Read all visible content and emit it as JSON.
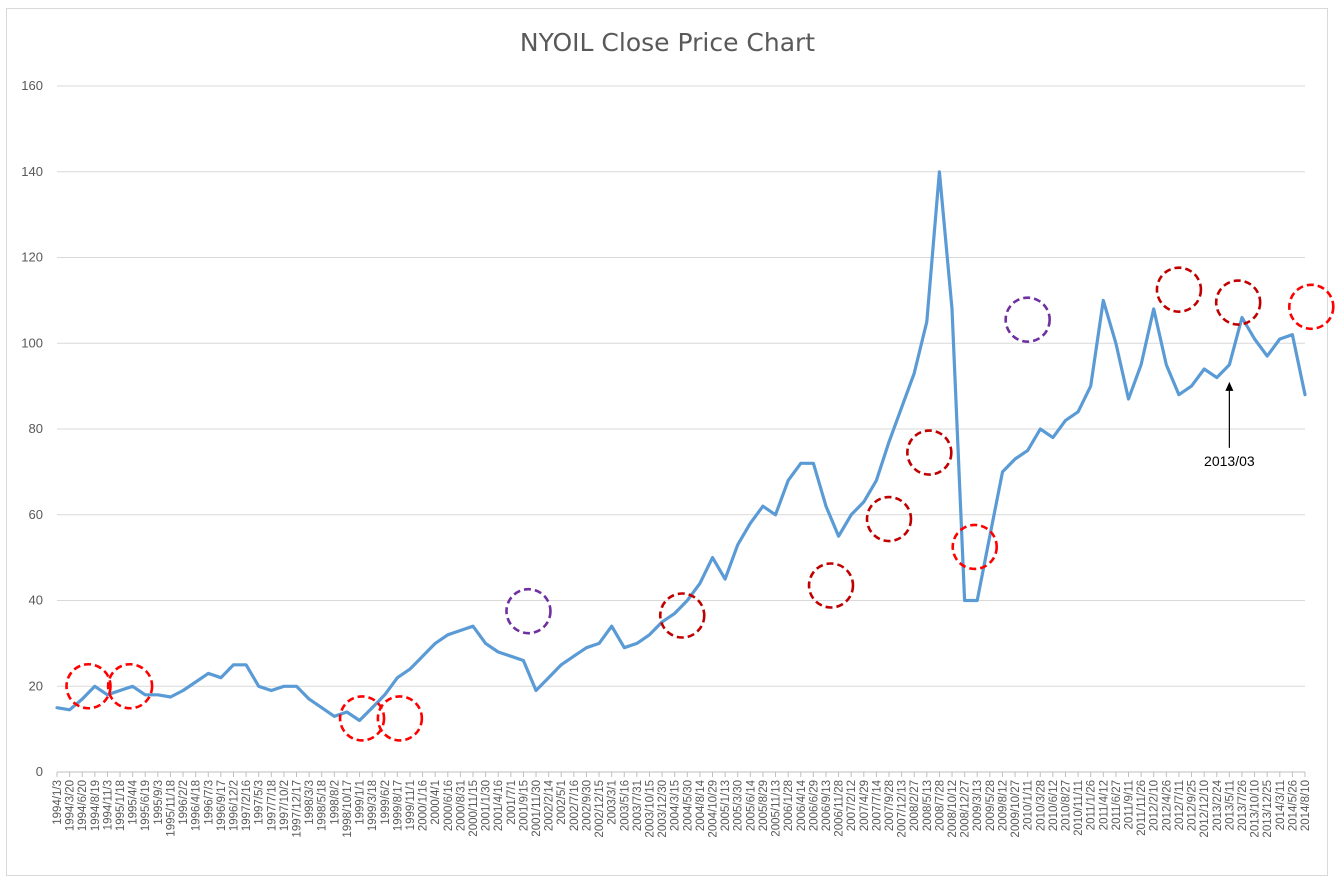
{
  "chart_data": {
    "type": "line",
    "title": "NYOIL Close Price Chart",
    "xlabel": "",
    "ylabel": "",
    "ylim": [
      0,
      160
    ],
    "yticks": [
      0,
      20,
      40,
      60,
      80,
      100,
      120,
      140,
      160
    ],
    "grid": true,
    "legend": "none",
    "line_color": "#5b9bd5",
    "x_tick_labels": [
      "1994/1/3",
      "1994/3/20",
      "1994/6/20",
      "1994/8/19",
      "1994/11/3",
      "1995/1/18",
      "1995/4/4",
      "1995/6/19",
      "1995/9/3",
      "1995/11/18",
      "1996/2/2",
      "1996/4/18",
      "1996/7/3",
      "1996/9/17",
      "1996/12/2",
      "1997/2/16",
      "1997/5/3",
      "1997/7/18",
      "1997/10/2",
      "1997/12/17",
      "1998/3/3",
      "1998/5/18",
      "1998/8/2",
      "1998/10/17",
      "1999/1/1",
      "1999/3/18",
      "1999/6/2",
      "1999/8/17",
      "1999/11/1",
      "2000/1/16",
      "2000/4/1",
      "2000/6/16",
      "2000/8/31",
      "2000/11/15",
      "2001/1/30",
      "2001/4/16",
      "2001/7/1",
      "2001/9/15",
      "2001/11/30",
      "2002/2/14",
      "2002/5/1",
      "2002/7/16",
      "2002/9/30",
      "2002/12/15",
      "2003/3/1",
      "2003/5/16",
      "2003/7/31",
      "2003/10/15",
      "2003/12/30",
      "2004/3/15",
      "2004/5/30",
      "2004/8/14",
      "2004/10/29",
      "2005/1/13",
      "2005/3/30",
      "2005/6/14",
      "2005/8/29",
      "2005/11/13",
      "2006/1/28",
      "2006/4/14",
      "2006/6/29",
      "2006/9/13",
      "2006/11/28",
      "2007/2/12",
      "2007/4/29",
      "2007/7/14",
      "2007/9/28",
      "2007/12/13",
      "2008/2/27",
      "2008/5/13",
      "2008/7/28",
      "2008/10/12",
      "2008/12/27",
      "2009/3/13",
      "2009/5/28",
      "2009/8/12",
      "2009/10/27",
      "2010/1/11",
      "2010/3/28",
      "2010/6/12",
      "2010/8/27",
      "2010/11/11",
      "2011/1/26",
      "2011/4/12",
      "2011/6/27",
      "2011/9/11",
      "2011/11/26",
      "2012/2/10",
      "2012/4/26",
      "2012/7/11",
      "2012/9/25",
      "2012/12/10",
      "2013/2/24",
      "2013/5/11",
      "2013/7/26",
      "2013/10/10",
      "2013/12/25",
      "2014/3/11",
      "2014/5/26",
      "2014/8/10"
    ],
    "series": [
      {
        "x": [
          0,
          1,
          2,
          3,
          4,
          5,
          6,
          7,
          8,
          9,
          10,
          11,
          12,
          13,
          14,
          15,
          16,
          17,
          18,
          19,
          20,
          21,
          22,
          23,
          24,
          25,
          26,
          27,
          28,
          29,
          30,
          31,
          32,
          33,
          34,
          35,
          36,
          37,
          38,
          39,
          40,
          41,
          42,
          43,
          44,
          45,
          46,
          47,
          48,
          49,
          50,
          51,
          52,
          53,
          54,
          55,
          56,
          57,
          58,
          59,
          60,
          61,
          62,
          63,
          64,
          65,
          66,
          67,
          68,
          69,
          70,
          71,
          72,
          73,
          74,
          75,
          76,
          77,
          78,
          79,
          80,
          81,
          82,
          83,
          84,
          85,
          86,
          87,
          88,
          89,
          90,
          91,
          92,
          93,
          94,
          95,
          96,
          97,
          98,
          99
        ],
        "values": [
          15,
          14.5,
          17,
          20,
          18,
          19,
          20,
          18,
          18,
          17.5,
          19,
          21,
          23,
          22,
          25,
          25,
          20,
          19,
          20,
          20,
          17,
          15,
          13,
          14,
          12,
          15,
          18,
          22,
          24,
          27,
          30,
          32,
          33,
          34,
          30,
          28,
          27,
          26,
          19,
          22,
          25,
          27,
          29,
          30,
          34,
          29,
          30,
          32,
          35,
          37,
          40,
          44,
          50,
          45,
          53,
          58,
          62,
          60,
          68,
          72,
          72,
          62,
          55,
          60,
          63,
          68,
          77,
          85,
          93,
          105,
          140,
          108,
          40,
          40,
          55,
          70,
          73,
          75,
          80,
          78,
          82,
          84,
          90,
          110,
          100,
          87,
          95,
          108,
          95,
          88,
          90,
          94,
          92,
          95,
          106,
          101,
          97,
          101,
          102,
          88
        ]
      }
    ],
    "annotations": [
      {
        "text": "2013/03",
        "x": 93,
        "y": 91
      }
    ],
    "highlight_circles": [
      {
        "x": 2.5,
        "y": 20,
        "color": "#ff0000"
      },
      {
        "x": 5.8,
        "y": 20,
        "color": "#ff0000"
      },
      {
        "x": 24.2,
        "y": 12.5,
        "color": "#ff0000"
      },
      {
        "x": 27.2,
        "y": 12.5,
        "color": "#ff0000"
      },
      {
        "x": 37.4,
        "y": 37.5,
        "color": "#7030a0"
      },
      {
        "x": 49.6,
        "y": 36.5,
        "color": "#c00000"
      },
      {
        "x": 61.4,
        "y": 43.5,
        "color": "#c00000"
      },
      {
        "x": 66.0,
        "y": 59,
        "color": "#c00000"
      },
      {
        "x": 69.2,
        "y": 74.5,
        "color": "#c00000"
      },
      {
        "x": 72.8,
        "y": 52.5,
        "color": "#ff0000"
      },
      {
        "x": 77.0,
        "y": 105.5,
        "color": "#7030a0"
      },
      {
        "x": 89.0,
        "y": 112.5,
        "color": "#c00000"
      },
      {
        "x": 93.7,
        "y": 109.5,
        "color": "#c00000"
      },
      {
        "x": 99.5,
        "y": 108.5,
        "color": "#ff0000"
      }
    ]
  }
}
